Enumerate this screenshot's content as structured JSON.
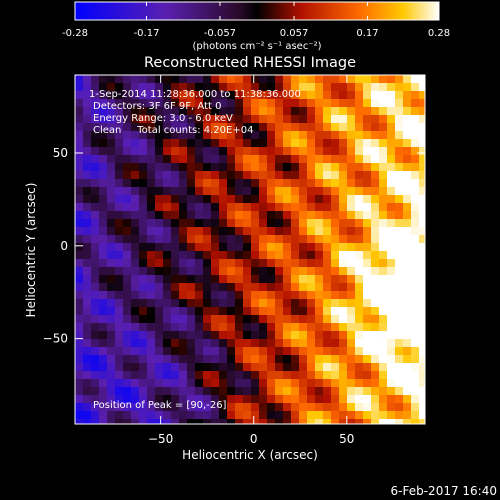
{
  "colorbar": {
    "ticks": [
      "-0.28",
      "-0.17",
      "-0.057",
      "0.057",
      "0.17",
      "0.28"
    ],
    "tick_values": [
      -0.28,
      -0.17,
      -0.057,
      0.057,
      0.17,
      0.28
    ],
    "range": [
      -0.28,
      0.28
    ],
    "unit_label": "(photons cm⁻² s⁻¹ asec⁻²)"
  },
  "chart_data": {
    "type": "heatmap",
    "title": "Reconstructed RHESSI Image",
    "xlabel": "Heliocentric X (arcsec)",
    "ylabel": "Heliocentric Y (arcsec)",
    "xlim": [
      -96,
      92
    ],
    "ylim": [
      -96,
      92
    ],
    "x_ticks": [
      -50,
      0,
      50
    ],
    "y_ticks": [
      -50,
      0,
      50
    ],
    "x_tick_labels": [
      "−50",
      "0",
      "50"
    ],
    "y_tick_labels": [
      "−50",
      "0",
      "50"
    ],
    "colormap": "rhessi-blue-purple-red-yellow-white",
    "zlim": [
      -0.28,
      0.28
    ],
    "peak_position": [
      90,
      -26
    ],
    "annotations": [
      "1-Sep-2014 11:28:36.000 to 11:38:36.000",
      "Detectors: 3F 6F 9F, Att 0",
      "Energy Range: 3.0 - 6.0 keV",
      "Clean     Total counts: 4.20E+04",
      "Position of Peak = [90,-26]"
    ]
  },
  "footer": {
    "timestamp": "6-Feb-2017 16:40"
  }
}
